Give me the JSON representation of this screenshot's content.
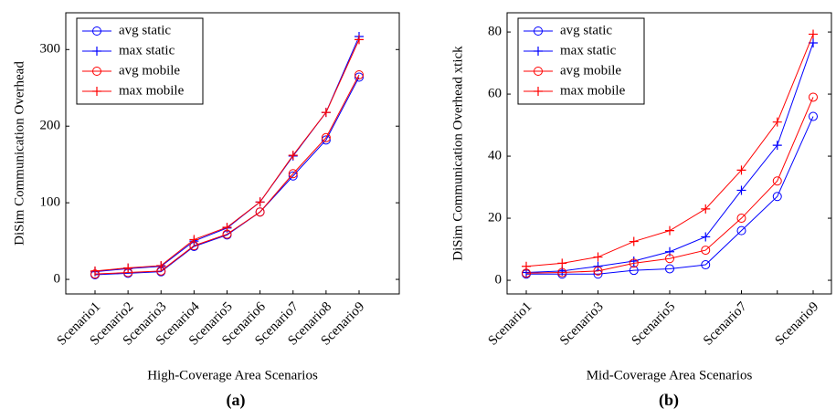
{
  "chart_data": [
    {
      "type": "line",
      "caption": "(a)",
      "x_label": "High-Coverage Area Scenarios",
      "y_label": "DiSim Communication Overhead",
      "categories": [
        "Scenario1",
        "Scenario2",
        "Scenario3",
        "Scenario4",
        "Scenario5",
        "Scenario6",
        "Scenario7",
        "Scenario8",
        "Scenario9"
      ],
      "ylim": [
        -19,
        348
      ],
      "yticks": [
        0,
        100,
        200,
        300
      ],
      "legend": "upper left",
      "series": [
        {
          "name": "avg static",
          "color": "#0000ff",
          "marker": "circle",
          "values": [
            6,
            8,
            10,
            43,
            58,
            88,
            135,
            182,
            264
          ]
        },
        {
          "name": "max static",
          "color": "#0000ff",
          "marker": "plus",
          "values": [
            10,
            14,
            17,
            50,
            67,
            101,
            161,
            218,
            317
          ]
        },
        {
          "name": "avg mobile",
          "color": "#ff0000",
          "marker": "circle",
          "values": [
            7,
            9,
            11,
            44,
            59,
            88,
            138,
            185,
            267
          ]
        },
        {
          "name": "max mobile",
          "color": "#ff0000",
          "marker": "plus",
          "values": [
            11,
            15,
            18,
            52,
            68,
            101,
            162,
            218,
            313
          ]
        }
      ]
    },
    {
      "type": "line",
      "caption": "(b)",
      "x_label": "Mid-Coverage Area Scenarios",
      "y_label": "DiSim Communication Overhead xtick",
      "categories": [
        "Scenario1",
        null,
        "Scenario3",
        null,
        "Scenario5",
        null,
        "Scenario7",
        null,
        "Scenario9"
      ],
      "ylim": [
        -4.4,
        86.2
      ],
      "yticks": [
        0,
        20,
        40,
        60,
        80
      ],
      "legend": "upper left",
      "series": [
        {
          "name": "avg static",
          "color": "#0000ff",
          "marker": "circle",
          "values": [
            2,
            2,
            2,
            3.2,
            3.7,
            5,
            16,
            27,
            52.8
          ]
        },
        {
          "name": "max static",
          "color": "#0000ff",
          "marker": "plus",
          "values": [
            2.5,
            3,
            4.5,
            6.2,
            9.2,
            14,
            29,
            43.5,
            76.5
          ]
        },
        {
          "name": "avg mobile",
          "color": "#ff0000",
          "marker": "circle",
          "values": [
            2.3,
            2.5,
            3,
            5.5,
            7,
            9.7,
            20,
            32,
            59
          ]
        },
        {
          "name": "max mobile",
          "color": "#ff0000",
          "marker": "plus",
          "values": [
            4.5,
            5.5,
            7.5,
            12.5,
            16,
            23,
            35.5,
            51,
            79.3
          ]
        }
      ]
    }
  ]
}
